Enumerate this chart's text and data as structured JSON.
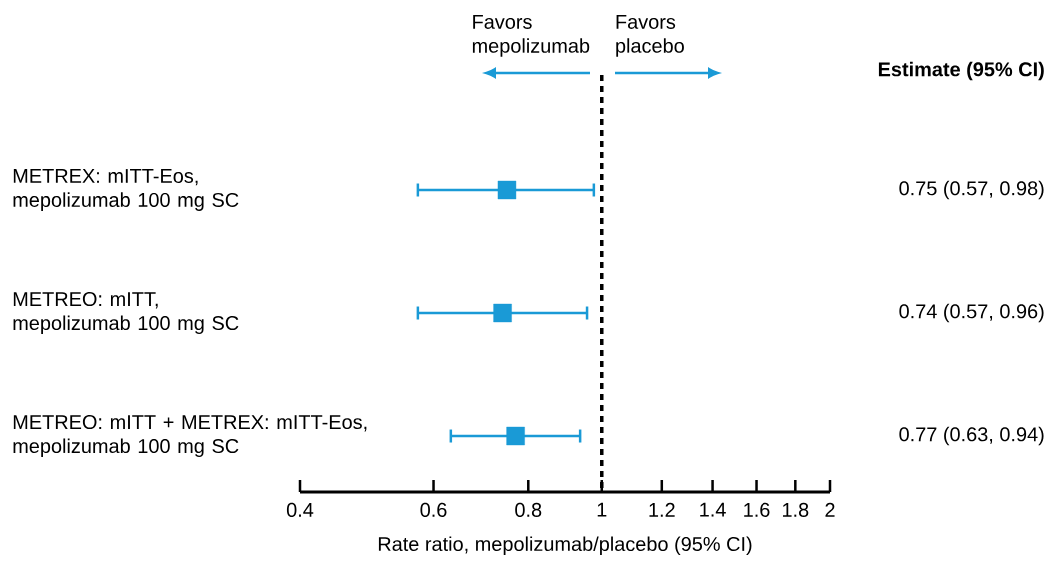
{
  "chart_data": {
    "type": "scatter",
    "orientation": "horizontal",
    "categories": [
      "METREX: mITT-Eos,\nmepolizumab 100 mg SC",
      "METREO: mITT,\nmepolizumab 100 mg SC",
      "METREO: mITT + METREX: mITT-Eos,\nmepolizumab 100 mg SC"
    ],
    "values": [
      0.75,
      0.74,
      0.77
    ],
    "errors": [
      [
        0.57,
        0.98
      ],
      [
        0.57,
        0.96
      ],
      [
        0.63,
        0.94
      ]
    ],
    "value_labels": [
      "0.75 (0.57, 0.98)",
      "0.74 (0.57, 0.96)",
      "0.77 (0.63, 0.94)"
    ],
    "color": "#1a9ad6",
    "marker": "square",
    "log": "x",
    "xlim": [
      0.4,
      2
    ],
    "xticks": [
      0.4,
      0.6,
      0.8,
      1,
      1.2,
      1.4,
      1.6,
      1.8,
      2
    ],
    "xlabel": "Rate ratio, mepolizumab/placebo (95% CI)",
    "ref_lines": [
      {
        "axis": "x",
        "value": 1,
        "color": "#000000",
        "line_style": "dashed"
      }
    ],
    "annotations": [
      "Favors mepolizumab",
      "Favors placebo",
      "Estimate (95% CI)"
    ],
    "grid": false
  }
}
